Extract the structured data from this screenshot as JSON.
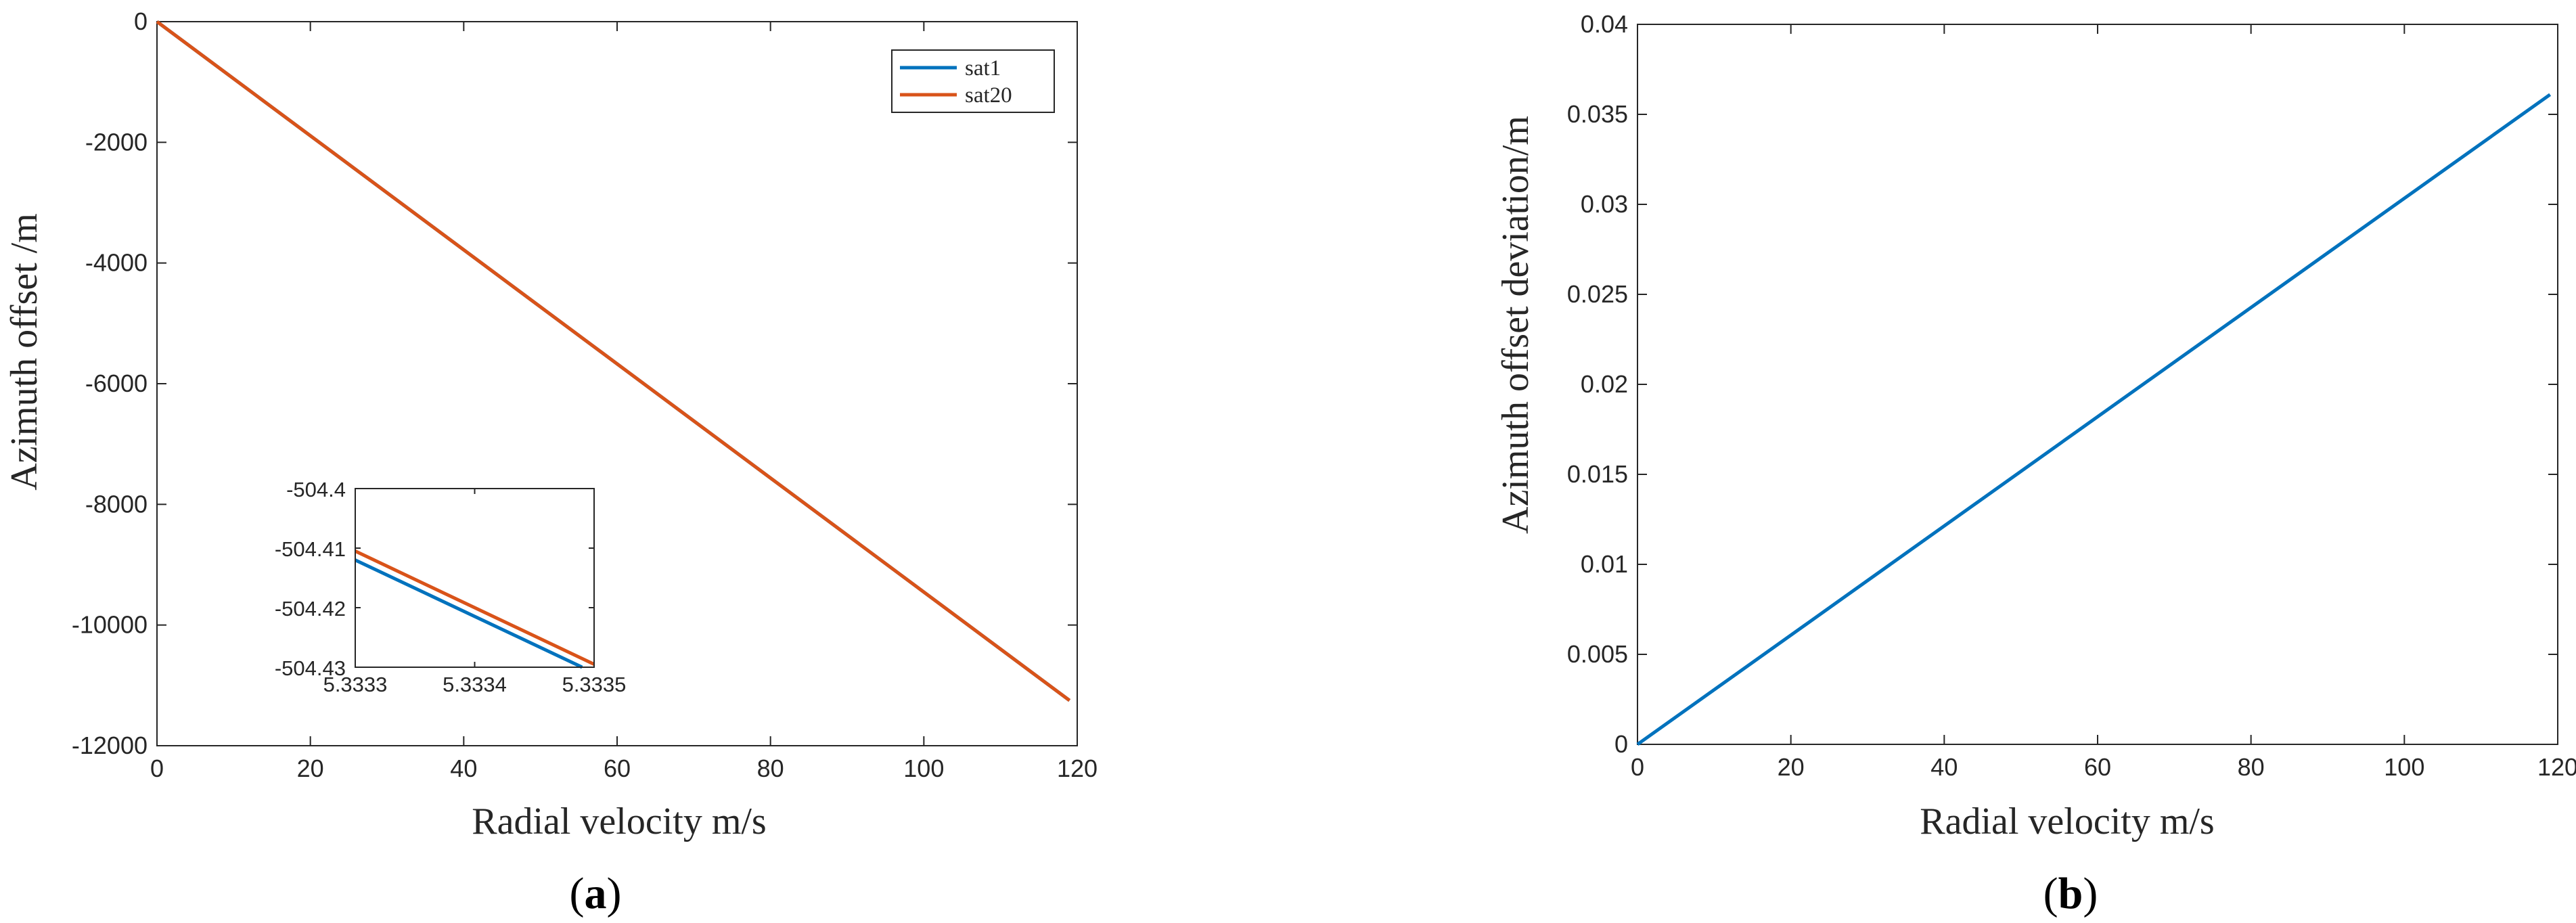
{
  "colors": {
    "sat1": "#0072BD",
    "sat20": "#D95319",
    "axis": "#262626"
  },
  "chart_data": [
    {
      "type": "line",
      "panel": "a",
      "panel_label": "a",
      "xlabel": "Radial velocity m/s",
      "ylabel": "Azimuth offset /m",
      "xlim": [
        0,
        120
      ],
      "ylim": [
        -12000,
        0
      ],
      "xticks": [
        0,
        20,
        40,
        60,
        80,
        100,
        120
      ],
      "yticks": [
        0,
        -2000,
        -4000,
        -6000,
        -8000,
        -10000,
        -12000
      ],
      "grid": false,
      "legend_position": "top-right",
      "series": [
        {
          "name": "sat1",
          "color": "#0072BD",
          "x": [
            0,
            119
          ],
          "y": [
            0,
            -11250
          ]
        },
        {
          "name": "sat20",
          "color": "#D95319",
          "x": [
            0,
            119
          ],
          "y": [
            0,
            -11250
          ]
        }
      ],
      "inset": {
        "xlim": [
          5.3333,
          5.3335
        ],
        "ylim": [
          -504.43,
          -504.4
        ],
        "xticks": [
          "5.3333",
          "5.3334",
          "5.3335"
        ],
        "yticks": [
          "-504.4",
          "-504.41",
          "-504.42",
          "-504.43"
        ],
        "series": [
          {
            "name": "sat1",
            "color": "#0072BD",
            "x": [
              5.3333,
              5.33349
            ],
            "y": [
              -504.412,
              -504.43
            ]
          },
          {
            "name": "sat20",
            "color": "#D95319",
            "x": [
              5.3333,
              5.3335
            ],
            "y": [
              -504.4105,
              -504.4295
            ]
          }
        ]
      }
    },
    {
      "type": "line",
      "panel": "b",
      "panel_label": "b",
      "xlabel": "Radial velocity m/s",
      "ylabel": "Azimuth offset deviation/m",
      "xlim": [
        0,
        120
      ],
      "ylim": [
        0,
        0.04
      ],
      "xticks": [
        0,
        20,
        40,
        60,
        80,
        100,
        120
      ],
      "yticks": [
        "0",
        "0.005",
        "0.01",
        "0.015",
        "0.02",
        "0.025",
        "0.03",
        "0.035",
        "0.04"
      ],
      "grid": false,
      "series": [
        {
          "name": "",
          "color": "#0072BD",
          "x": [
            0,
            119
          ],
          "y": [
            0,
            0.0361
          ]
        }
      ]
    }
  ]
}
